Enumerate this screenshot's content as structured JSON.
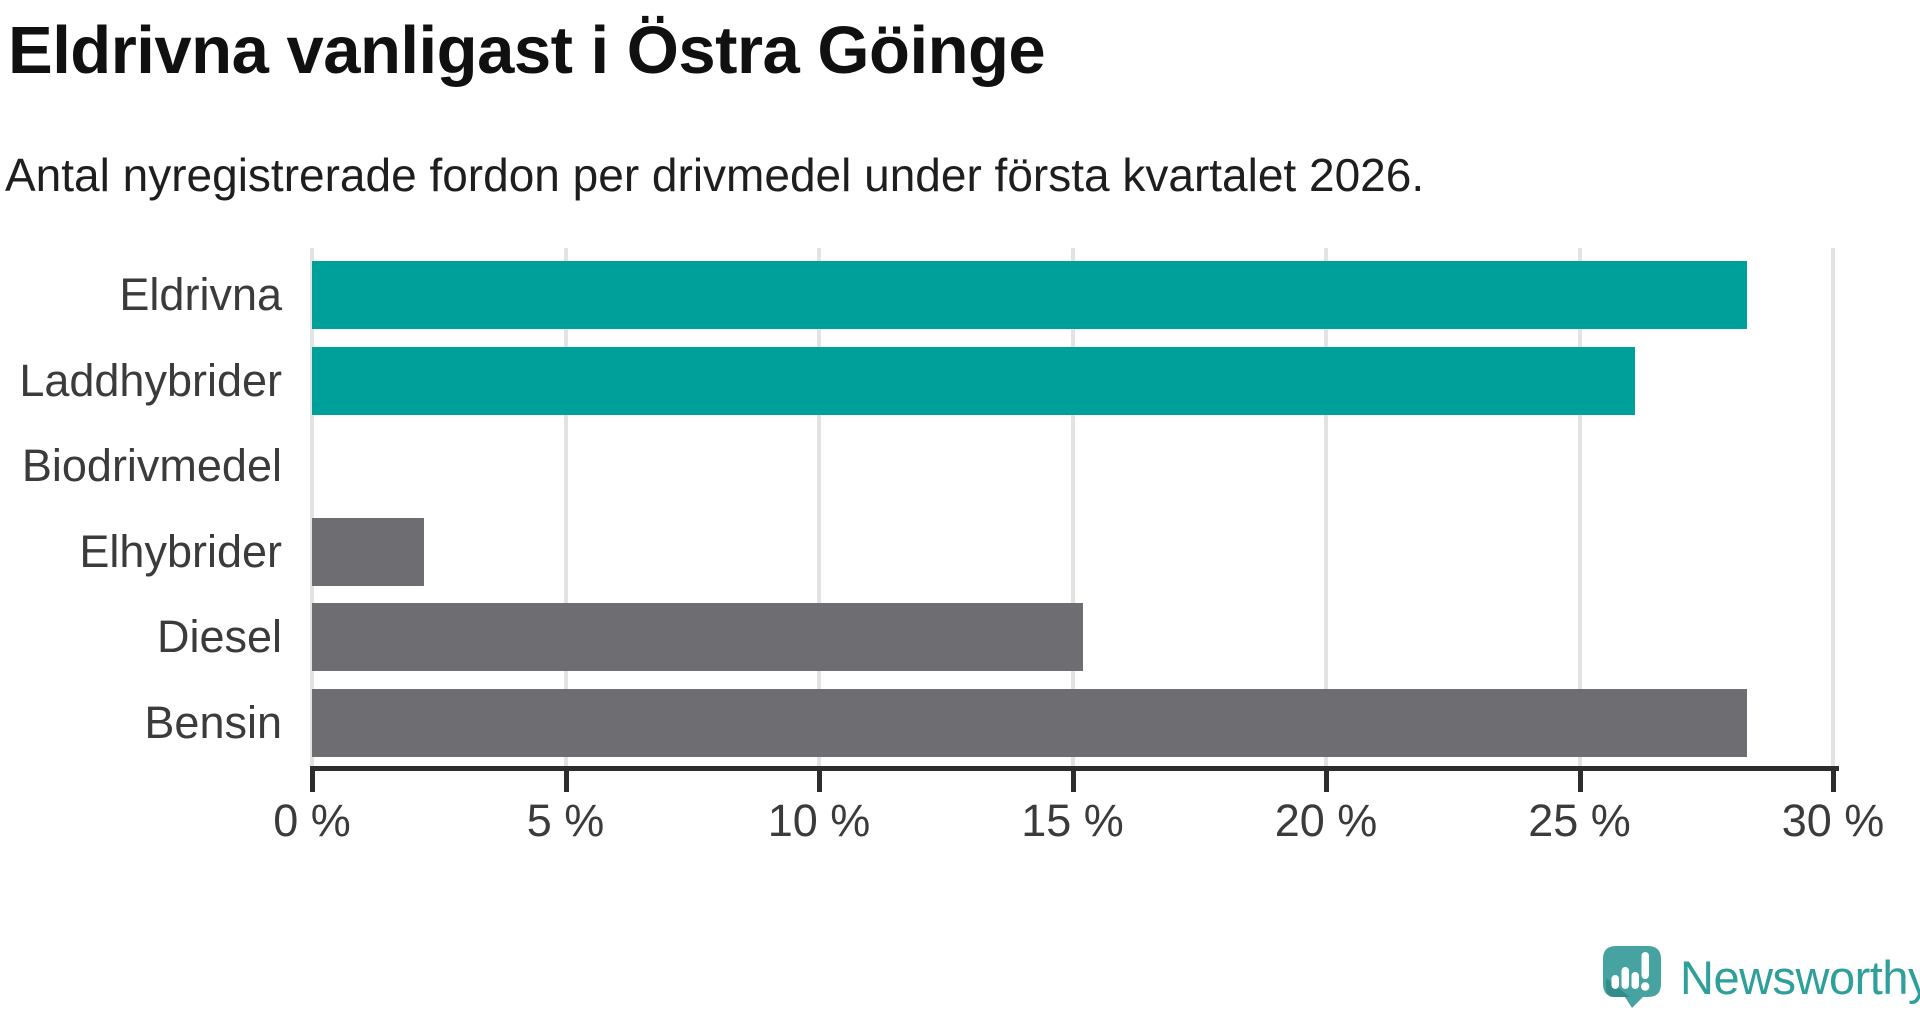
{
  "title": "Eldrivna vanligast i Östra Göinge",
  "subtitle": "Antal nyregistrerade fordon per drivmedel under första kvartalet 2026.",
  "branding": {
    "logo_text": "Newsworthy",
    "logo_icon": "newsworthy-speech-bubble-bar-chart-icon"
  },
  "colors": {
    "highlight_bar": "#00a09a",
    "muted_bar": "#6d6d72",
    "gridline": "#e3e3e3",
    "axis": "#2d2d2d",
    "title_text": "#101010",
    "label_text": "#3b3b3b",
    "logo_icon_teal": "#47a3a2",
    "logo_icon_fold": "#338e8b",
    "logo_text_teal": "#2f9f9a"
  },
  "chart_data": {
    "type": "bar",
    "orientation": "horizontal",
    "title": "Eldrivna vanligast i Östra Göinge",
    "subtitle": "Antal nyregistrerade fordon per drivmedel under första kvartalet 2026.",
    "categories": [
      "Eldrivna",
      "Laddhybrider",
      "Biodrivmedel",
      "Elhybrider",
      "Diesel",
      "Bensin"
    ],
    "values": [
      28.3,
      26.1,
      0,
      2.2,
      15.2,
      28.3
    ],
    "unit": "%",
    "xlim": [
      0,
      30
    ],
    "x_ticks": [
      0,
      5,
      10,
      15,
      20,
      25,
      30
    ],
    "x_tick_labels": [
      "0 %",
      "5 %",
      "10 %",
      "15 %",
      "20 %",
      "25 %",
      "30 %"
    ],
    "bar_colors": [
      "#00a09a",
      "#00a09a",
      "#6d6d72",
      "#6d6d72",
      "#6d6d72",
      "#6d6d72"
    ],
    "grid": true,
    "legend": false
  }
}
